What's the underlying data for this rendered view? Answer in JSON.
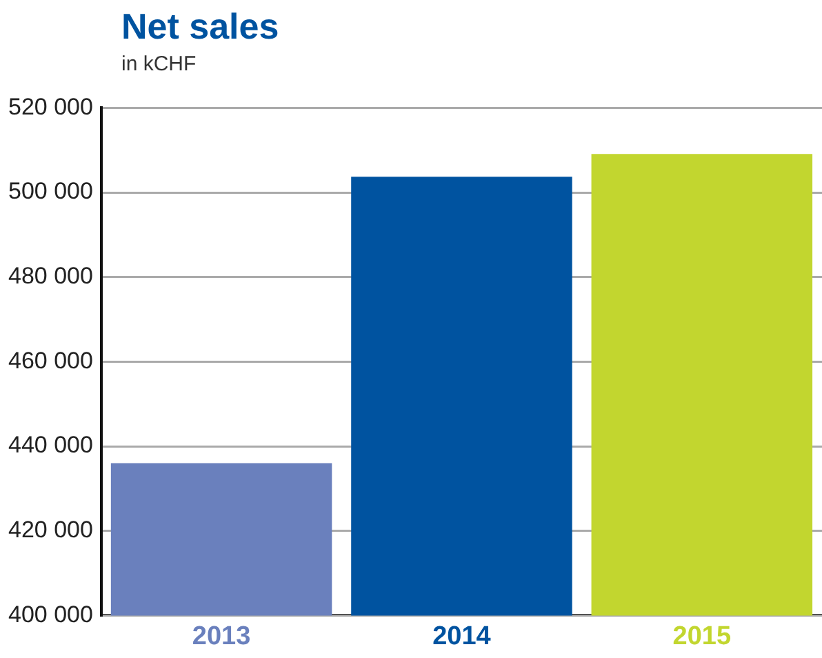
{
  "chart_data": {
    "type": "bar",
    "title": "Net sales",
    "subtitle": "in kCHF",
    "categories": [
      "2013",
      "2014",
      "2015"
    ],
    "values": [
      436000,
      503700,
      509100
    ],
    "colors": [
      "#6a80bd",
      "#0053a0",
      "#c2d62f"
    ],
    "ylim": [
      400000,
      520000
    ],
    "yticks": [
      {
        "value": 400000,
        "label": "400 000"
      },
      {
        "value": 420000,
        "label": "420 000"
      },
      {
        "value": 440000,
        "label": "440 000"
      },
      {
        "value": 460000,
        "label": "460 000"
      },
      {
        "value": 480000,
        "label": "480 000"
      },
      {
        "value": 500000,
        "label": "500 000"
      },
      {
        "value": 520000,
        "label": "520 000"
      }
    ],
    "grid": "y",
    "legend": false
  }
}
